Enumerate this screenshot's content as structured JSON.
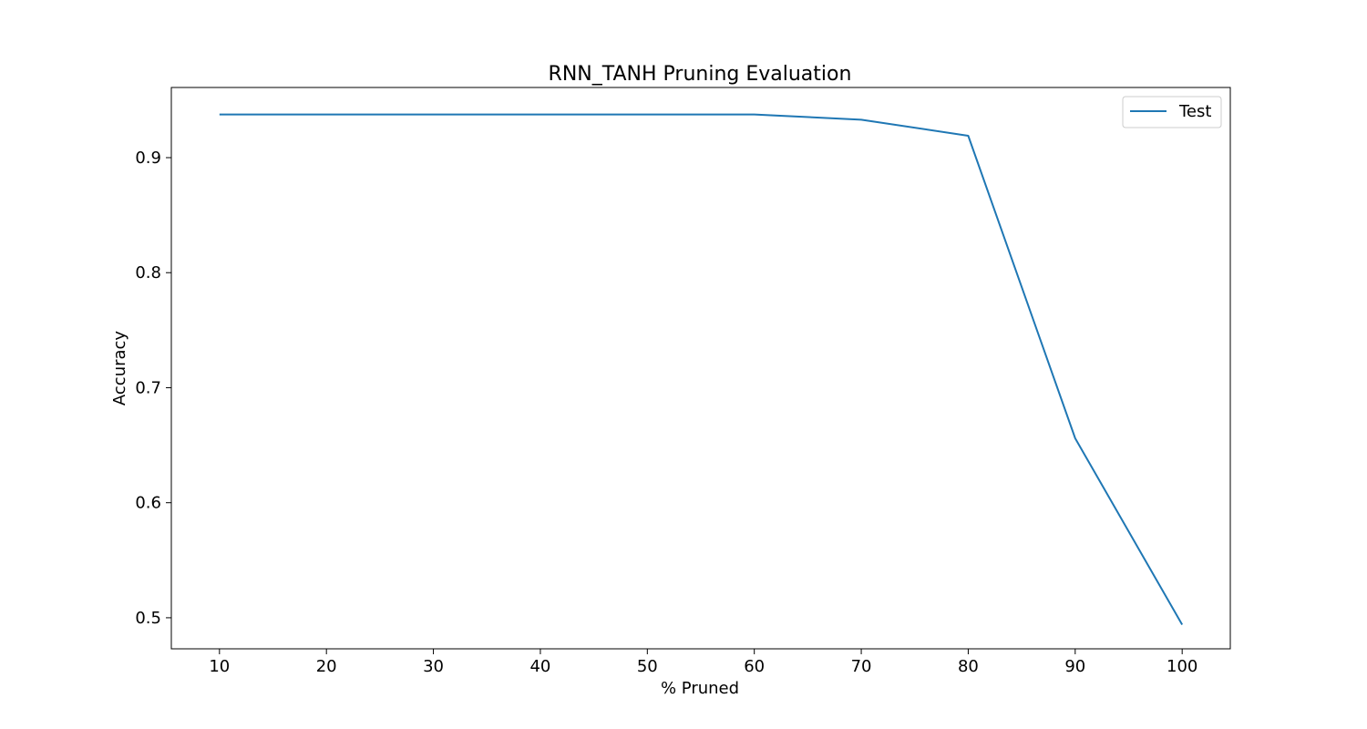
{
  "chart_data": {
    "type": "line",
    "title": "RNN_TANH Pruning Evaluation",
    "xlabel": "% Pruned",
    "ylabel": "Accuracy",
    "x": [
      10,
      20,
      30,
      40,
      50,
      60,
      70,
      80,
      90,
      100
    ],
    "xticks": [
      "10",
      "20",
      "30",
      "40",
      "50",
      "60",
      "70",
      "80",
      "90",
      "100"
    ],
    "yticks": [
      "0.5",
      "0.6",
      "0.7",
      "0.8",
      "0.9"
    ],
    "xlim": [
      5.5,
      104.5
    ],
    "ylim": [
      0.473,
      0.961
    ],
    "grid": false,
    "legend_position": "upper right",
    "series": [
      {
        "name": "Test",
        "color": "#1f77b4",
        "values": [
          0.9375,
          0.9375,
          0.9375,
          0.9375,
          0.9375,
          0.9375,
          0.933,
          0.919,
          0.656,
          0.494
        ]
      }
    ]
  }
}
